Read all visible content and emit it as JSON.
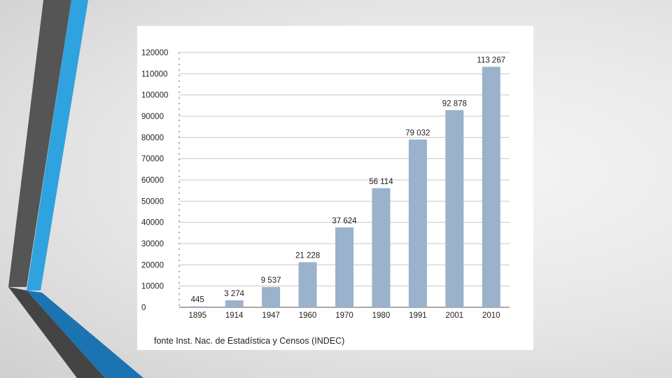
{
  "colors": {
    "bar": "#9ab2cb",
    "grid": "#c8c8c8",
    "axis": "#555555",
    "accent_blue": "#2ea3e0",
    "accent_dark": "#555555",
    "accent_deep_blue": "#1b73b2"
  },
  "chart_data": {
    "type": "bar",
    "categories": [
      "1895",
      "1914",
      "1947",
      "1960",
      "1970",
      "1980",
      "1991",
      "2001",
      "2010"
    ],
    "values": [
      445,
      3274,
      9537,
      21228,
      37624,
      56114,
      79032,
      92878,
      113267
    ],
    "data_labels": [
      "445",
      "3 274",
      "9 537",
      "21 228",
      "37 624",
      "56 114",
      "79 032",
      "92 878",
      "113 267"
    ],
    "ylim": [
      0,
      120000
    ],
    "y_ticks": [
      "0",
      "10000",
      "20000",
      "30000",
      "40000",
      "50000",
      "60000",
      "70000",
      "80000",
      "90000",
      "100000",
      "110000",
      "120000"
    ],
    "grid": true,
    "legend": "none",
    "title": "",
    "xlabel": "",
    "ylabel": "",
    "source": "fonte Inst. Nac. de Estadística y Censos (INDEC)"
  }
}
